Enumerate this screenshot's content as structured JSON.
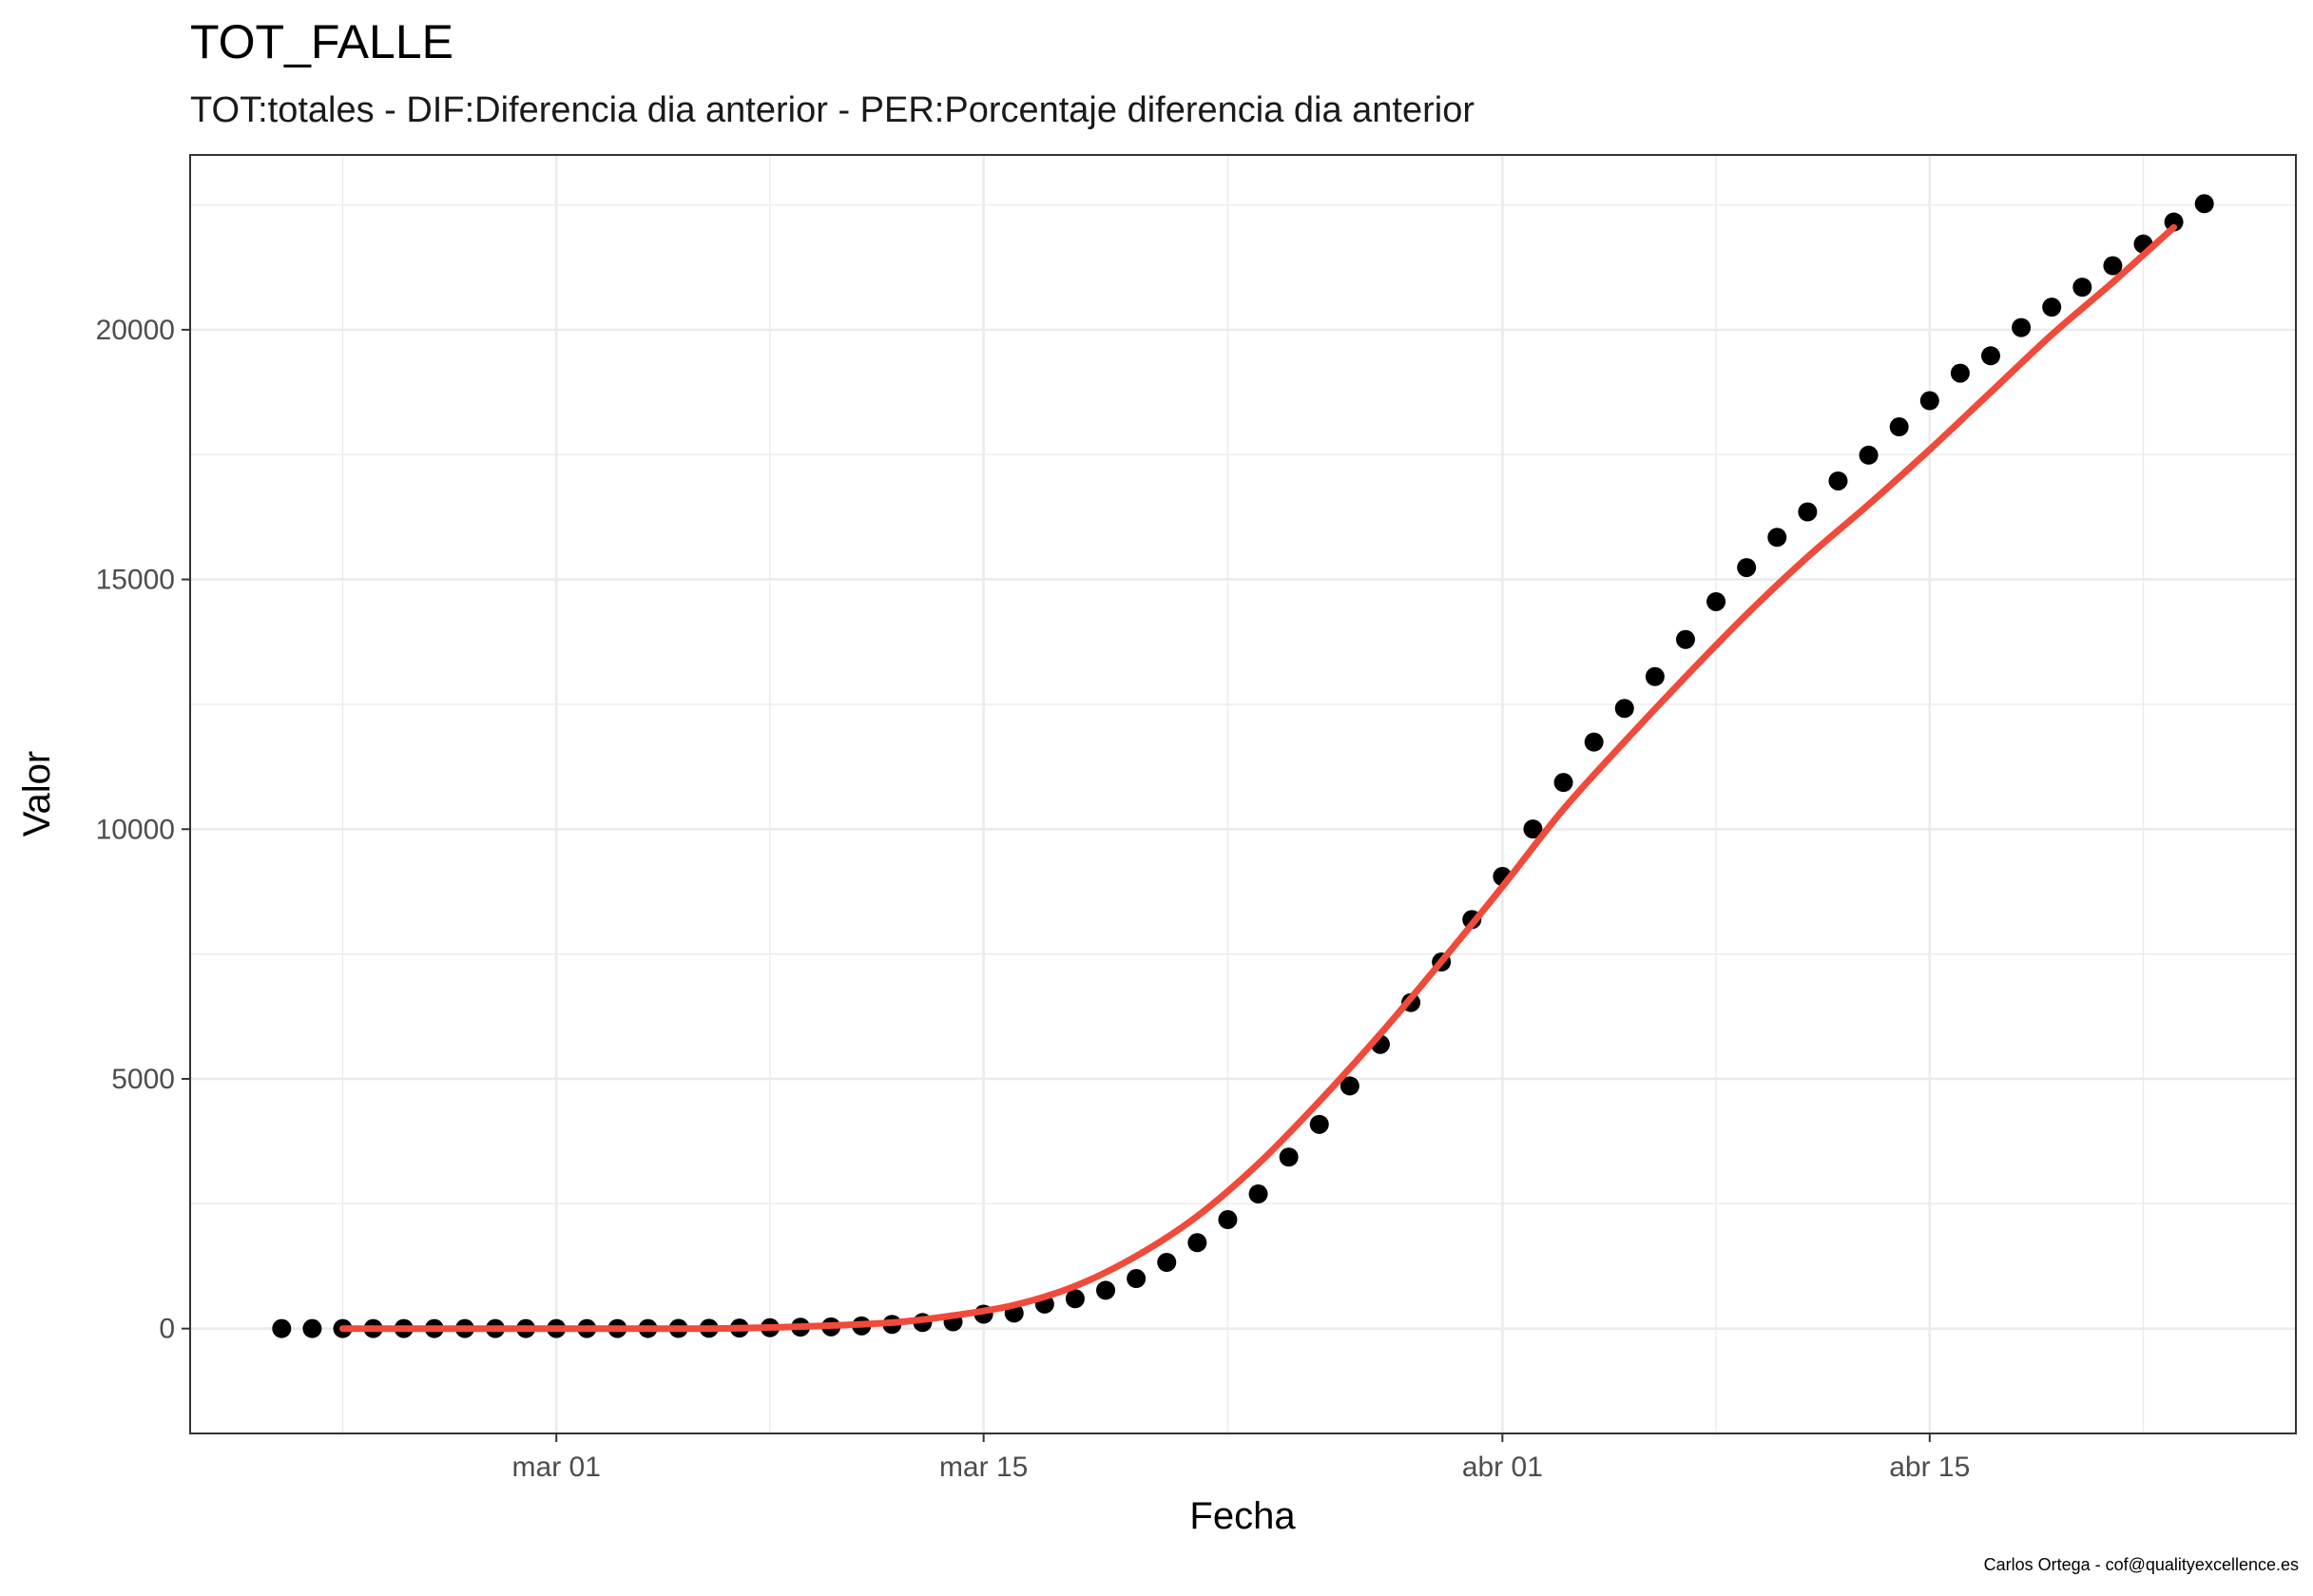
{
  "chart_data": {
    "type": "scatter",
    "title": "TOT_FALLE",
    "subtitle": "TOT:totales - DIF:Diferencia dia anterior - PER:Porcentaje diferencia dia anterior",
    "xlabel": "Fecha",
    "ylabel": "Valor",
    "caption": "Carlos Ortega - cof@qualityexcellence.es",
    "x_range": [
      "2020-02-18",
      "2020-04-27"
    ],
    "ylim": [
      -2100,
      23500
    ],
    "x_ticks": [
      {
        "date": "2020-03-01",
        "label": "mar 01"
      },
      {
        "date": "2020-03-15",
        "label": "mar 15"
      },
      {
        "date": "2020-04-01",
        "label": "abr 01"
      },
      {
        "date": "2020-04-15",
        "label": "abr 15"
      }
    ],
    "x_minor_dates": [
      "2020-02-23",
      "2020-03-08",
      "2020-03-23",
      "2020-04-08",
      "2020-04-22"
    ],
    "y_ticks": [
      0,
      5000,
      10000,
      15000,
      20000
    ],
    "y_minor": [
      2500,
      7500,
      12500,
      17500,
      22500
    ],
    "grid": true,
    "points_color": "#000000",
    "smooth_color": "#f04a3a",
    "series": [
      {
        "name": "points",
        "x": [
          "2020-02-21",
          "2020-02-22",
          "2020-02-23",
          "2020-02-24",
          "2020-02-25",
          "2020-02-26",
          "2020-02-27",
          "2020-02-28",
          "2020-02-29",
          "2020-03-01",
          "2020-03-02",
          "2020-03-03",
          "2020-03-04",
          "2020-03-05",
          "2020-03-06",
          "2020-03-07",
          "2020-03-08",
          "2020-03-09",
          "2020-03-10",
          "2020-03-11",
          "2020-03-12",
          "2020-03-13",
          "2020-03-14",
          "2020-03-15",
          "2020-03-16",
          "2020-03-17",
          "2020-03-18",
          "2020-03-19",
          "2020-03-20",
          "2020-03-21",
          "2020-03-22",
          "2020-03-23",
          "2020-03-24",
          "2020-03-25",
          "2020-03-26",
          "2020-03-27",
          "2020-03-28",
          "2020-03-29",
          "2020-03-30",
          "2020-03-31",
          "2020-04-01",
          "2020-04-02",
          "2020-04-03",
          "2020-04-04",
          "2020-04-05",
          "2020-04-06",
          "2020-04-07",
          "2020-04-08",
          "2020-04-09",
          "2020-04-10",
          "2020-04-11",
          "2020-04-12",
          "2020-04-13",
          "2020-04-14",
          "2020-04-15",
          "2020-04-16",
          "2020-04-17",
          "2020-04-18",
          "2020-04-19",
          "2020-04-20",
          "2020-04-21",
          "2020-04-22",
          "2020-04-23",
          "2020-04-24"
        ],
        "y": [
          0,
          0,
          0,
          0,
          0,
          0,
          0,
          0,
          0,
          0,
          0,
          1,
          2,
          3,
          5,
          10,
          17,
          28,
          35,
          54,
          84,
          121,
          136,
          288,
          309,
          491,
          598,
          767,
          1002,
          1326,
          1720,
          2182,
          2696,
          3434,
          4089,
          4858,
          5690,
          6528,
          7340,
          8189,
          9053,
          10003,
          10935,
          11744,
          12418,
          13055,
          13798,
          14555,
          15238,
          15843,
          16353,
          16972,
          17489,
          18056,
          18579,
          19130,
          19478,
          20043,
          20453,
          20852,
          21282,
          21717,
          22157,
          22524
        ]
      },
      {
        "name": "smooth",
        "x": [
          "2020-02-23",
          "2020-02-27",
          "2020-03-02",
          "2020-03-06",
          "2020-03-09",
          "2020-03-12",
          "2020-03-14",
          "2020-03-16",
          "2020-03-18",
          "2020-03-20",
          "2020-03-22",
          "2020-03-24",
          "2020-03-26",
          "2020-03-28",
          "2020-03-30",
          "2020-04-01",
          "2020-04-03",
          "2020-04-05",
          "2020-04-07",
          "2020-04-09",
          "2020-04-11",
          "2020-04-13",
          "2020-04-15",
          "2020-04-17",
          "2020-04-19",
          "2020-04-21",
          "2020-04-23"
        ],
        "y": [
          0,
          0,
          0,
          0,
          40,
          120,
          260,
          470,
          850,
          1450,
          2250,
          3300,
          4550,
          5900,
          7350,
          8850,
          10400,
          11750,
          13050,
          14300,
          15450,
          16500,
          17600,
          18750,
          19900,
          20950,
          22050
        ]
      }
    ]
  }
}
